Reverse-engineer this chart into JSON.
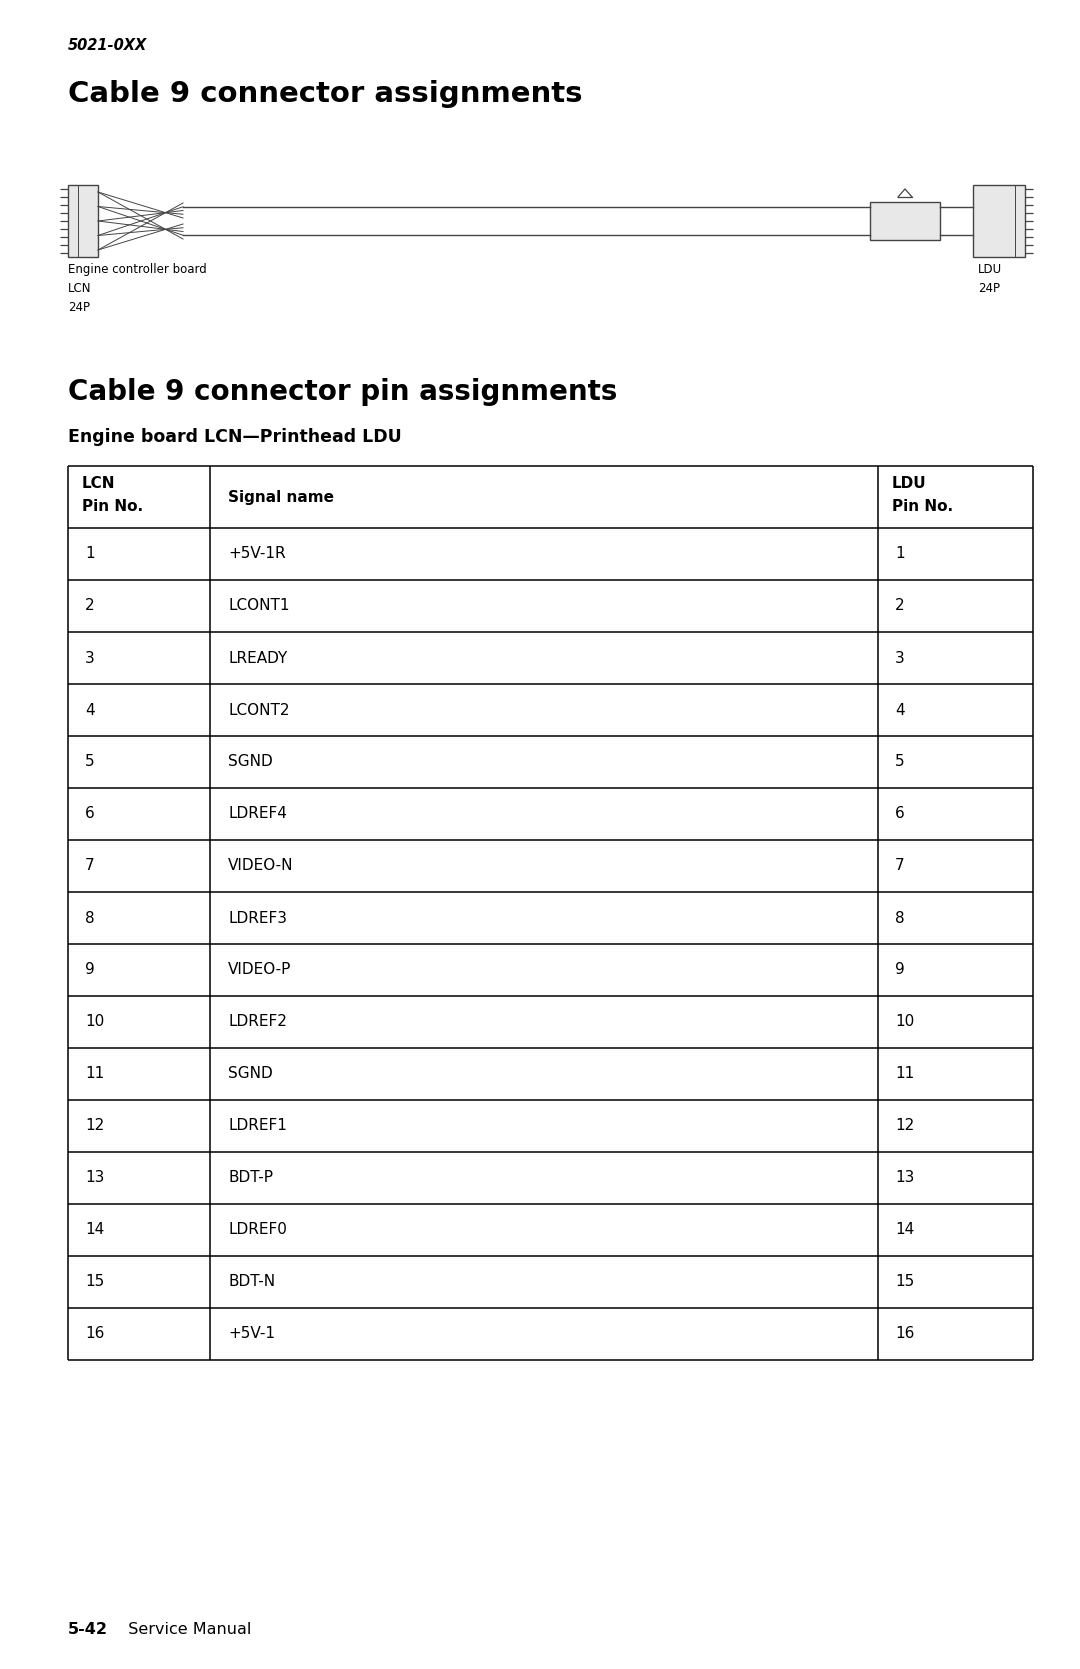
{
  "page_label": "5021-0XX",
  "title1": "Cable 9 connector assignments",
  "title2": "Cable 9 connector pin assignments",
  "subtitle": "Engine board LCN—Printhead LDU",
  "left_label_line1": "Engine controller board",
  "left_label_line2": "LCN",
  "left_label_line3": "24P",
  "right_label_line1": "LDU",
  "right_label_line2": "24P",
  "col_header_lcn1": "LCN",
  "col_header_lcn2": "Pin No.",
  "col_header_signal": "Signal name",
  "col_header_ldu1": "LDU",
  "col_header_ldu2": "Pin No.",
  "rows": [
    [
      "1",
      "+5V-1R",
      "1"
    ],
    [
      "2",
      "LCONT1",
      "2"
    ],
    [
      "3",
      "LREADY",
      "3"
    ],
    [
      "4",
      "LCONT2",
      "4"
    ],
    [
      "5",
      "SGND",
      "5"
    ],
    [
      "6",
      "LDREF4",
      "6"
    ],
    [
      "7",
      "VIDEO-N",
      "7"
    ],
    [
      "8",
      "LDREF3",
      "8"
    ],
    [
      "9",
      "VIDEO-P",
      "9"
    ],
    [
      "10",
      "LDREF2",
      "10"
    ],
    [
      "11",
      "SGND",
      "11"
    ],
    [
      "12",
      "LDREF1",
      "12"
    ],
    [
      "13",
      "BDT-P",
      "13"
    ],
    [
      "14",
      "LDREF0",
      "14"
    ],
    [
      "15",
      "BDT-N",
      "15"
    ],
    [
      "16",
      "+5V-1",
      "16"
    ]
  ],
  "footer_bold": "5-42",
  "footer_normal": "  Service Manual",
  "bg_color": "#ffffff",
  "text_color": "#000000",
  "line_color": "#444444",
  "fig_width": 10.8,
  "fig_height": 16.69,
  "dpi": 100
}
